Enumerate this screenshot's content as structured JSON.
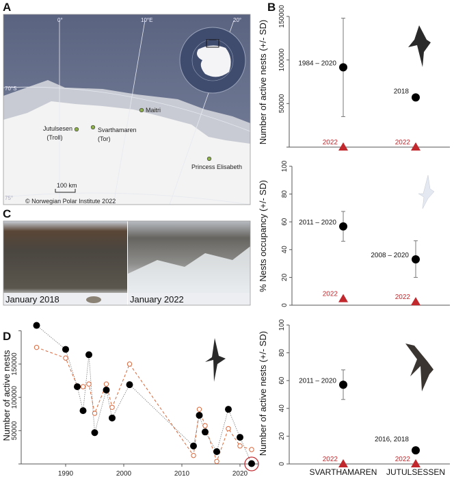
{
  "panel_labels": {
    "a": "A",
    "b": "B",
    "c": "C",
    "d": "D"
  },
  "map": {
    "graticule": {
      "lon0": "0°",
      "lon10": "10°E",
      "lon20": "20°",
      "lat70": "70°S",
      "lat75": "75°"
    },
    "places": [
      {
        "name": "Maitri",
        "sub": ""
      },
      {
        "name": "Jutulsesen",
        "sub": "(Troll)"
      },
      {
        "name": "Svarthamaren",
        "sub": "(Tor)"
      },
      {
        "name": "Princess Elisabeth",
        "sub": ""
      }
    ],
    "scale_bar": "100 km",
    "credit": "© Norwegian Polar Institute 2022",
    "colors": {
      "ocean": "#5f6a86",
      "ice_shelf": "#c8cbd3",
      "land": "#f3f3f3",
      "station": "#8db04a"
    }
  },
  "photos": {
    "left_caption": "January 2018",
    "right_caption": "January 2022"
  },
  "chart_data": [
    {
      "id": "D",
      "type": "line",
      "ylabel": "Number of active nests",
      "x_ticks": [
        1990,
        2000,
        2010,
        2020
      ],
      "y_ticks": [
        0,
        50000,
        100000,
        150000,
        200000
      ],
      "y_tick_labels": [
        "",
        "50000",
        "100000",
        "150000",
        ""
      ],
      "series": [
        {
          "style": "filled black circles, dotted grey line",
          "color": "#000000",
          "x": [
            1985,
            1990,
            1992,
            1993,
            1994,
            1995,
            1997,
            1998,
            2001,
            2012,
            2013,
            2014,
            2016,
            2018,
            2020,
            2022
          ],
          "y": [
            208000,
            172000,
            116000,
            80000,
            164000,
            47000,
            111000,
            69000,
            119000,
            27000,
            73000,
            48000,
            18500,
            82000,
            40000,
            500
          ]
        },
        {
          "style": "open orange circles, dashed orange line",
          "color": "#d9663a",
          "x": [
            1985,
            1990,
            1992,
            1993,
            1994,
            1995,
            1997,
            1998,
            2001,
            2012,
            2013,
            2014,
            2016,
            2018,
            2020,
            2022
          ],
          "y": [
            175000,
            159000,
            117000,
            116000,
            120000,
            76000,
            120000,
            85000,
            150000,
            12700,
            82000,
            57500,
            3800,
            53000,
            27000,
            21600
          ]
        }
      ],
      "highlight": {
        "x": 2022,
        "note": "2022 point circled in red",
        "color": "#c0282d"
      }
    },
    {
      "id": "B1",
      "type": "scatter",
      "ylabel": "Number of active nests (+/- SD)",
      "categories": [
        "SVARTHAMAREN",
        "JUTULSESSEN"
      ],
      "y_ticks": [
        0,
        50000,
        100000,
        150000
      ],
      "y_tick_labels": [
        "",
        "50000",
        "100000",
        "150000"
      ],
      "points": [
        {
          "category": "SVARTHAMAREN",
          "label": "1984 – 2020",
          "mean": 91600,
          "sd_low": 35000,
          "sd_high": 148000
        },
        {
          "category": "JUTULSESSEN",
          "label": "2018",
          "mean": 57000
        }
      ],
      "points_2022": [
        {
          "category": "SVARTHAMAREN",
          "label": "2022",
          "value": 0
        },
        {
          "category": "JUTULSESSEN",
          "label": "2022",
          "value": 0
        }
      ]
    },
    {
      "id": "B2",
      "type": "scatter",
      "ylabel": "% Nests occupancy (+/- SD)",
      "categories": [
        "SVARTHAMAREN",
        "JUTULSESSEN"
      ],
      "y_ticks": [
        0,
        20,
        40,
        60,
        80,
        100
      ],
      "y_tick_labels": [
        "0",
        "20",
        "40",
        "60",
        "80",
        "100"
      ],
      "points": [
        {
          "category": "SVARTHAMAREN",
          "label": "2011 – 2020",
          "mean": 56.7,
          "sd_low": 46,
          "sd_high": 67.5
        },
        {
          "category": "JUTULSESSEN",
          "label": "2008 – 2020",
          "mean": 33,
          "sd_low": 20,
          "sd_high": 46.4
        }
      ],
      "points_2022": [
        {
          "category": "SVARTHAMAREN",
          "label": "2022",
          "value": 4.6
        },
        {
          "category": "JUTULSESSEN",
          "label": "2022",
          "value": 2.4
        }
      ]
    },
    {
      "id": "B3",
      "type": "scatter",
      "ylabel": "Number of active nests (+/- SD)",
      "categories": [
        "SVARTHAMAREN",
        "JUTULSESSEN"
      ],
      "y_ticks": [
        0,
        20,
        40,
        60,
        80,
        100
      ],
      "y_tick_labels": [
        "0",
        "20",
        "40",
        "60",
        "80",
        "100"
      ],
      "points": [
        {
          "category": "SVARTHAMAREN",
          "label": "2011 – 2020",
          "mean": 57,
          "sd_low": 46.4,
          "sd_high": 67.7
        },
        {
          "category": "JUTULSESSEN",
          "label": "2016, 2018",
          "mean": 9.8
        }
      ],
      "points_2022": [
        {
          "category": "SVARTHAMAREN",
          "label": "2022",
          "value": 0
        },
        {
          "category": "JUTULSESSEN",
          "label": "2022",
          "value": 0
        }
      ]
    }
  ]
}
